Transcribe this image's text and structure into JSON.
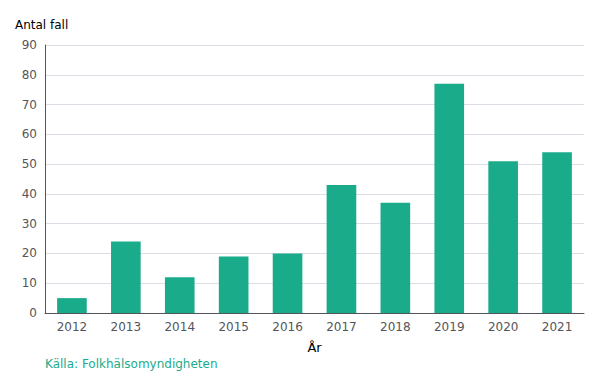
{
  "chart_data": {
    "type": "bar",
    "categories": [
      "2012",
      "2013",
      "2014",
      "2015",
      "2016",
      "2017",
      "2018",
      "2019",
      "2020",
      "2021"
    ],
    "values": [
      5,
      24,
      12,
      19,
      20,
      43,
      37,
      77,
      51,
      54
    ],
    "color": "#1aab8b",
    "xlabel": "År",
    "ylabel": "Antal fall",
    "ylim": [
      0,
      90
    ],
    "yticks": [
      0,
      10,
      20,
      30,
      40,
      50,
      60,
      70,
      80,
      90
    ],
    "grid": true,
    "annotations": [
      {
        "text": "Källa: Folkhälsomyndigheten",
        "color": "#1aab8b"
      }
    ]
  }
}
